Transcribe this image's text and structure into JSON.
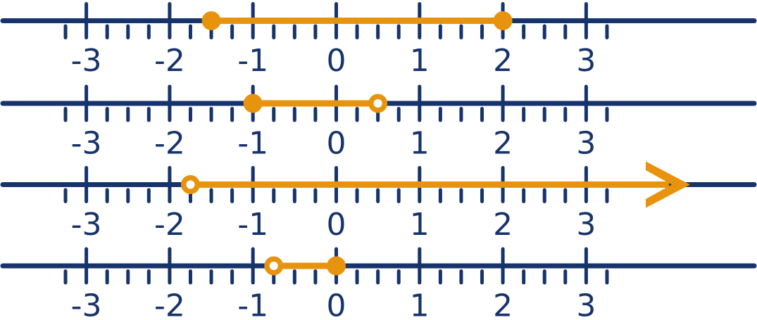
{
  "colors": {
    "navy": "#17336B",
    "orange": "#E8930D",
    "open_dot_center": "#FFFFFF",
    "background": "#FFFFFF"
  },
  "axis": {
    "major_min": -3,
    "major_max": 3,
    "minor_step": 0.25,
    "minor_min": -3.25,
    "minor_max": 3.25,
    "tick_labels": [
      "-3",
      "-2",
      "-1",
      "0",
      "1",
      "2",
      "3"
    ]
  },
  "number_lines": [
    {
      "interval": {
        "kind": "segment",
        "start": -1.5,
        "end": 2,
        "start_open": false,
        "end_open": false
      }
    },
    {
      "interval": {
        "kind": "segment",
        "start": -1,
        "end": 0.5,
        "start_open": false,
        "end_open": true
      }
    },
    {
      "interval": {
        "kind": "ray",
        "start": -1.75,
        "start_open": true,
        "direction": "right"
      }
    },
    {
      "interval": {
        "kind": "segment",
        "start": -0.75,
        "end": 0,
        "start_open": true,
        "end_open": false
      }
    }
  ]
}
